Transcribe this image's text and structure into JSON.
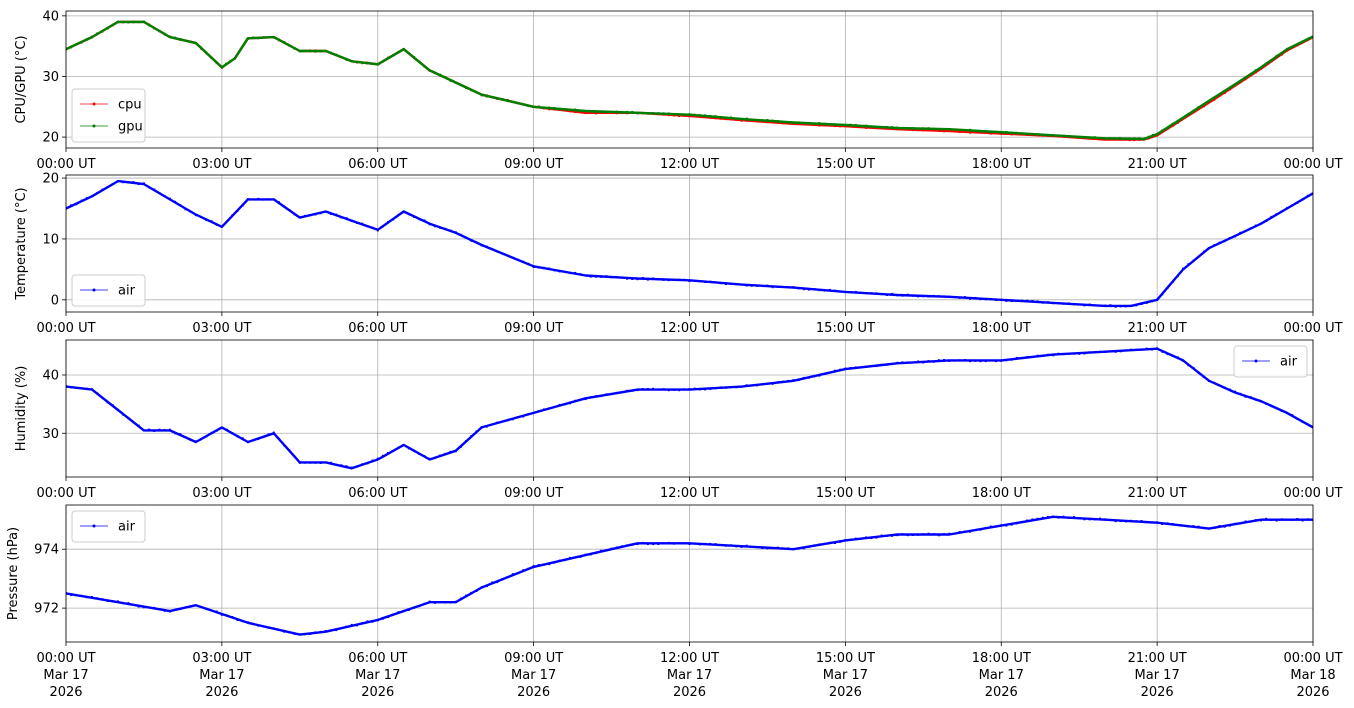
{
  "colors": {
    "cpu": "#ff0000",
    "gpu": "#008000",
    "air": "#0000ff",
    "grid": "#b0b0b0"
  },
  "x_ticks": [
    "00:00 UT",
    "03:00 UT",
    "06:00 UT",
    "09:00 UT",
    "12:00 UT",
    "15:00 UT",
    "18:00 UT",
    "21:00 UT",
    "00:00 UT"
  ],
  "x_ticks_bottom": [
    [
      "00:00 UT",
      "Mar 17",
      "2026"
    ],
    [
      "03:00 UT",
      "Mar 17",
      "2026"
    ],
    [
      "06:00 UT",
      "Mar 17",
      "2026"
    ],
    [
      "09:00 UT",
      "Mar 17",
      "2026"
    ],
    [
      "12:00 UT",
      "Mar 17",
      "2026"
    ],
    [
      "15:00 UT",
      "Mar 17",
      "2026"
    ],
    [
      "18:00 UT",
      "Mar 17",
      "2026"
    ],
    [
      "21:00 UT",
      "Mar 17",
      "2026"
    ],
    [
      "00:00 UT",
      "Mar 18",
      "2026"
    ]
  ],
  "chart_data": [
    {
      "type": "scatter",
      "ylabel": "CPU/GPU (°C)",
      "xlim": [
        "2026-03-17 00:00",
        "2026-03-18 00:00"
      ],
      "ylim": [
        18.2,
        40.8
      ],
      "yticks": [
        20,
        30,
        40
      ],
      "grid": true,
      "legend_position": "lower-left",
      "x": [
        "2026-03-17 00:00",
        "2026-03-17 00:30",
        "2026-03-17 01:00",
        "2026-03-17 01:30",
        "2026-03-17 02:00",
        "2026-03-17 02:30",
        "2026-03-17 03:00",
        "2026-03-17 03:15",
        "2026-03-17 03:30",
        "2026-03-17 04:00",
        "2026-03-17 04:30",
        "2026-03-17 05:00",
        "2026-03-17 05:30",
        "2026-03-17 06:00",
        "2026-03-17 06:30",
        "2026-03-17 07:00",
        "2026-03-17 07:30",
        "2026-03-17 08:00",
        "2026-03-17 08:30",
        "2026-03-17 09:00",
        "2026-03-17 10:00",
        "2026-03-17 11:00",
        "2026-03-17 12:00",
        "2026-03-17 13:00",
        "2026-03-17 14:00",
        "2026-03-17 15:00",
        "2026-03-17 16:00",
        "2026-03-17 17:00",
        "2026-03-17 18:00",
        "2026-03-17 19:00",
        "2026-03-17 20:00",
        "2026-03-17 20:45",
        "2026-03-17 21:00",
        "2026-03-17 21:30",
        "2026-03-17 22:00",
        "2026-03-17 22:30",
        "2026-03-17 23:00",
        "2026-03-17 23:30",
        "2026-03-18 00:00"
      ],
      "series": [
        {
          "name": "cpu",
          "values": [
            34.5,
            36.5,
            39,
            39,
            36.5,
            35.5,
            31.5,
            33,
            36.3,
            36.5,
            34.2,
            34.2,
            32.5,
            32,
            34.5,
            31,
            29,
            27,
            26,
            25,
            24,
            24,
            23.5,
            22.8,
            22.2,
            21.8,
            21.3,
            21,
            20.6,
            20.2,
            19.6,
            19.6,
            20.3,
            23,
            25.7,
            28.5,
            31.3,
            34.3,
            36.5
          ]
        },
        {
          "name": "gpu",
          "values": [
            34.5,
            36.5,
            39,
            39,
            36.5,
            35.5,
            31.5,
            33,
            36.3,
            36.5,
            34.2,
            34.2,
            32.5,
            32,
            34.5,
            31,
            29,
            27,
            26,
            25,
            24.3,
            24,
            23.7,
            23,
            22.4,
            22,
            21.5,
            21.3,
            20.8,
            20.3,
            19.8,
            19.7,
            20.5,
            23.2,
            26,
            28.7,
            31.5,
            34.5,
            36.6
          ]
        }
      ]
    },
    {
      "type": "scatter",
      "ylabel": "Temperature (°C)",
      "xlim": [
        "2026-03-17 00:00",
        "2026-03-18 00:00"
      ],
      "ylim": [
        -2,
        20.5
      ],
      "yticks": [
        0,
        10,
        20
      ],
      "grid": true,
      "legend_position": "lower-left",
      "x": [
        "2026-03-17 00:00",
        "2026-03-17 00:30",
        "2026-03-17 01:00",
        "2026-03-17 01:30",
        "2026-03-17 02:00",
        "2026-03-17 02:30",
        "2026-03-17 03:00",
        "2026-03-17 03:30",
        "2026-03-17 04:00",
        "2026-03-17 04:30",
        "2026-03-17 05:00",
        "2026-03-17 05:30",
        "2026-03-17 06:00",
        "2026-03-17 06:30",
        "2026-03-17 07:00",
        "2026-03-17 07:30",
        "2026-03-17 08:00",
        "2026-03-17 09:00",
        "2026-03-17 10:00",
        "2026-03-17 11:00",
        "2026-03-17 12:00",
        "2026-03-17 13:00",
        "2026-03-17 14:00",
        "2026-03-17 15:00",
        "2026-03-17 16:00",
        "2026-03-17 17:00",
        "2026-03-17 18:00",
        "2026-03-17 19:00",
        "2026-03-17 20:00",
        "2026-03-17 20:30",
        "2026-03-17 21:00",
        "2026-03-17 21:30",
        "2026-03-17 22:00",
        "2026-03-17 22:30",
        "2026-03-17 23:00",
        "2026-03-17 23:30",
        "2026-03-18 00:00"
      ],
      "series": [
        {
          "name": "air",
          "values": [
            15,
            17,
            19.5,
            19,
            16.5,
            14,
            12,
            16.5,
            16.5,
            13.5,
            14.5,
            13,
            11.5,
            14.5,
            12.5,
            11,
            9,
            5.5,
            4,
            3.5,
            3.2,
            2.5,
            2,
            1.3,
            0.8,
            0.5,
            0,
            -0.5,
            -1,
            -1,
            0,
            5,
            8.5,
            10.5,
            12.5,
            15,
            17.5
          ]
        }
      ]
    },
    {
      "type": "scatter",
      "ylabel": "Humidity (%)",
      "xlim": [
        "2026-03-17 00:00",
        "2026-03-18 00:00"
      ],
      "ylim": [
        22.5,
        46
      ],
      "yticks": [
        30,
        40
      ],
      "grid": true,
      "legend_position": "upper-right",
      "x": [
        "2026-03-17 00:00",
        "2026-03-17 00:30",
        "2026-03-17 01:00",
        "2026-03-17 01:30",
        "2026-03-17 02:00",
        "2026-03-17 02:30",
        "2026-03-17 03:00",
        "2026-03-17 03:30",
        "2026-03-17 04:00",
        "2026-03-17 04:30",
        "2026-03-17 05:00",
        "2026-03-17 05:30",
        "2026-03-17 06:00",
        "2026-03-17 06:30",
        "2026-03-17 07:00",
        "2026-03-17 07:30",
        "2026-03-17 08:00",
        "2026-03-17 09:00",
        "2026-03-17 10:00",
        "2026-03-17 11:00",
        "2026-03-17 12:00",
        "2026-03-17 13:00",
        "2026-03-17 14:00",
        "2026-03-17 15:00",
        "2026-03-17 16:00",
        "2026-03-17 17:00",
        "2026-03-17 18:00",
        "2026-03-17 19:00",
        "2026-03-17 20:00",
        "2026-03-17 21:00",
        "2026-03-17 21:30",
        "2026-03-17 22:00",
        "2026-03-17 22:30",
        "2026-03-17 23:00",
        "2026-03-17 23:30",
        "2026-03-18 00:00"
      ],
      "series": [
        {
          "name": "air",
          "values": [
            38,
            37.5,
            34,
            30.5,
            30.5,
            28.5,
            31,
            28.5,
            30,
            25,
            25,
            24,
            25.5,
            28,
            25.5,
            27,
            31,
            33.5,
            36,
            37.5,
            37.5,
            38,
            39,
            41,
            42,
            42.5,
            42.5,
            43.5,
            44,
            44.5,
            42.5,
            39,
            37,
            35.5,
            33.5,
            31
          ]
        }
      ]
    },
    {
      "type": "scatter",
      "ylabel": "Pressure (hPa)",
      "xlim": [
        "2026-03-17 00:00",
        "2026-03-18 00:00"
      ],
      "ylim": [
        970.85,
        975.5
      ],
      "yticks": [
        972,
        974
      ],
      "grid": true,
      "legend_position": "upper-left",
      "x": [
        "2026-03-17 00:00",
        "2026-03-17 01:00",
        "2026-03-17 02:00",
        "2026-03-17 02:30",
        "2026-03-17 03:00",
        "2026-03-17 03:30",
        "2026-03-17 04:00",
        "2026-03-17 04:30",
        "2026-03-17 05:00",
        "2026-03-17 06:00",
        "2026-03-17 07:00",
        "2026-03-17 07:30",
        "2026-03-17 08:00",
        "2026-03-17 09:00",
        "2026-03-17 10:00",
        "2026-03-17 11:00",
        "2026-03-17 12:00",
        "2026-03-17 13:00",
        "2026-03-17 14:00",
        "2026-03-17 15:00",
        "2026-03-17 16:00",
        "2026-03-17 17:00",
        "2026-03-17 18:00",
        "2026-03-17 19:00",
        "2026-03-17 20:00",
        "2026-03-17 21:00",
        "2026-03-17 22:00",
        "2026-03-17 23:00",
        "2026-03-18 00:00"
      ],
      "series": [
        {
          "name": "air",
          "values": [
            972.5,
            972.2,
            971.9,
            972.1,
            971.8,
            971.5,
            971.3,
            971.1,
            971.2,
            971.6,
            972.2,
            972.2,
            972.7,
            973.4,
            973.8,
            974.2,
            974.2,
            974.1,
            974.0,
            974.3,
            974.5,
            974.5,
            974.8,
            975.1,
            975.0,
            974.9,
            974.7,
            975.0,
            975.0
          ]
        }
      ]
    }
  ]
}
